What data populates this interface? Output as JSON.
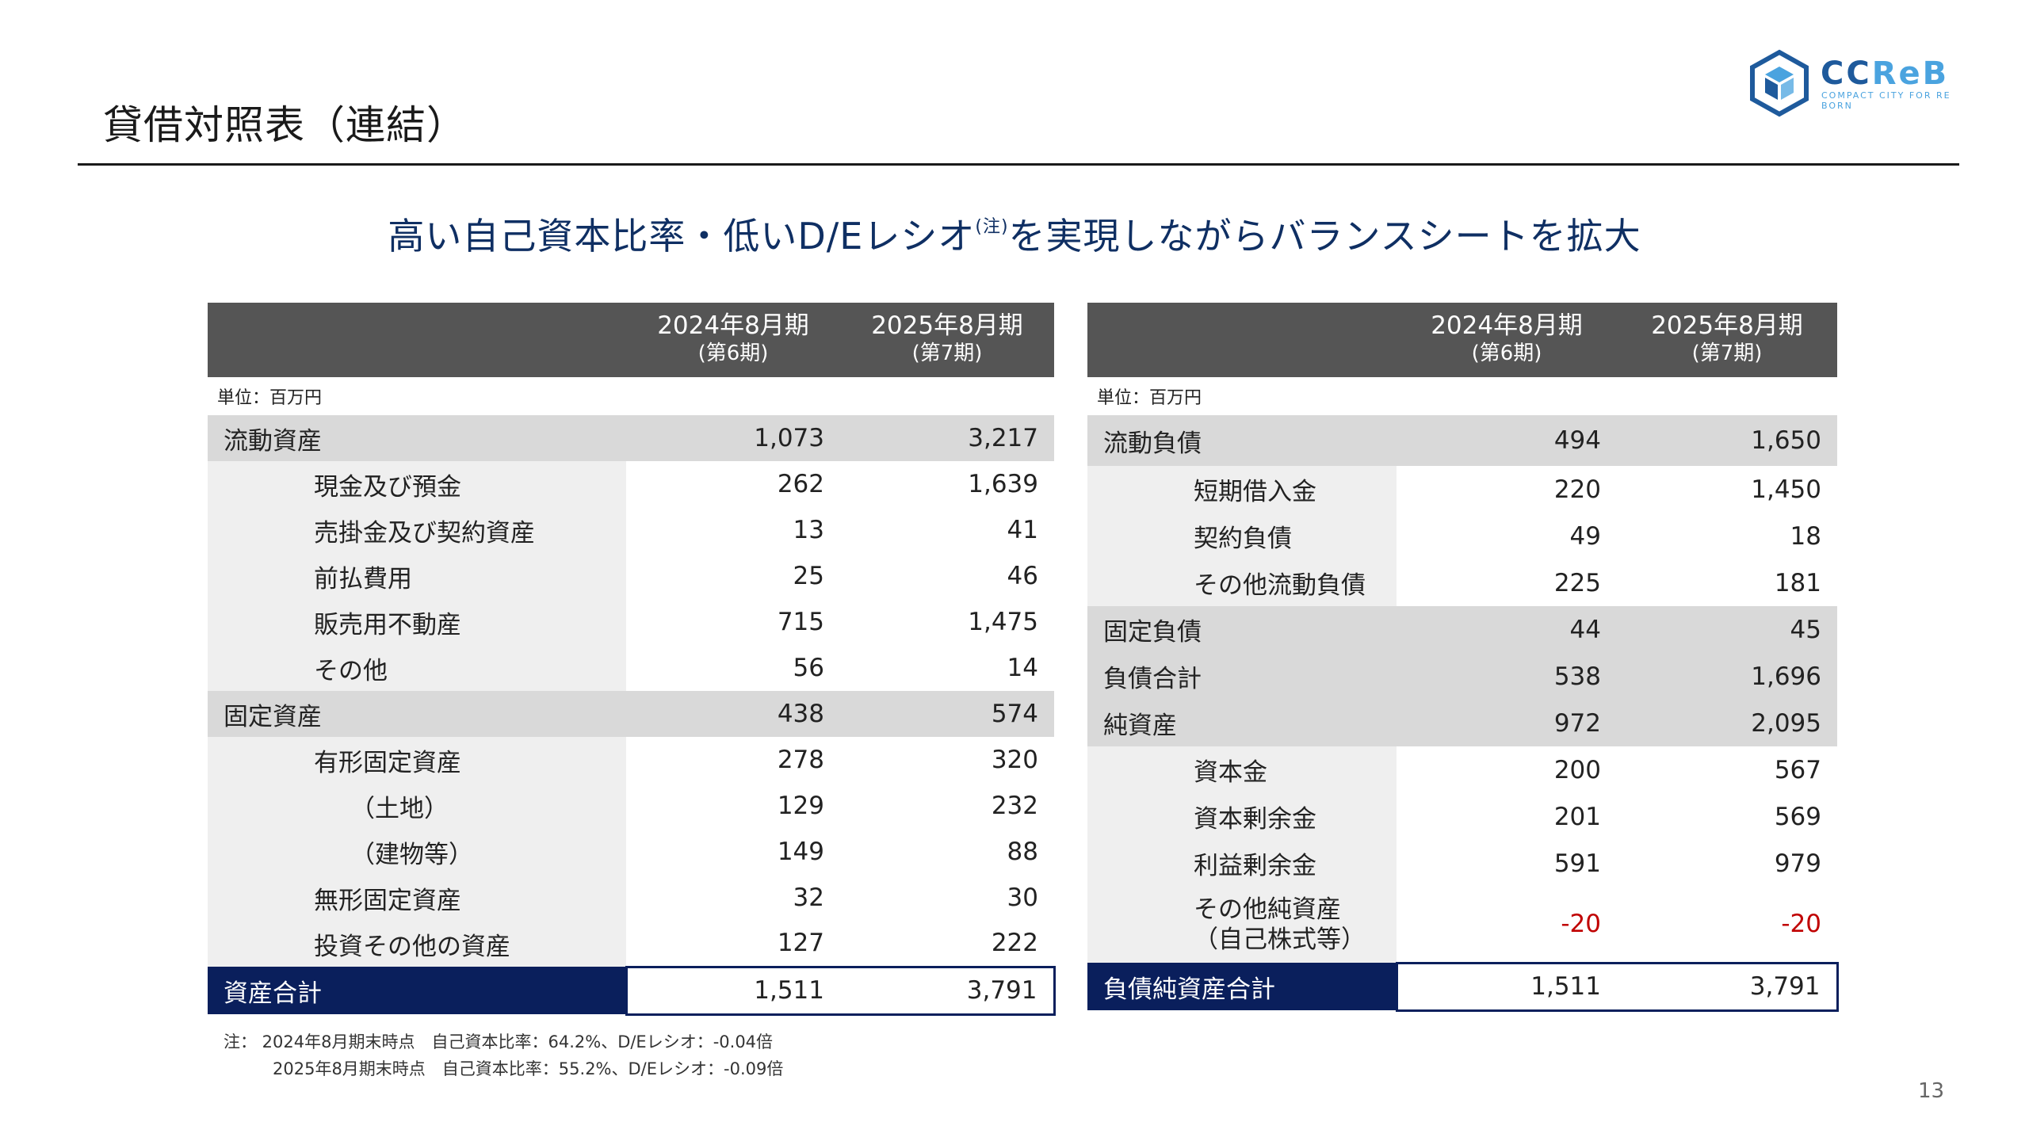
{
  "page": {
    "title": "貸借対照表（連結）",
    "headline_main": "高い自己資本比率・低いD/Eレシオ",
    "headline_note": "(注)",
    "headline_rest": "を実現しながらバランスシートを拡大",
    "page_number": "13"
  },
  "logo": {
    "brand_bold": "CC",
    "brand_thin": "ReB",
    "tagline": "COMPACT CITY FOR RE BORN"
  },
  "columns": {
    "fy2024": "2024年8月期",
    "fy2024_sub": "(第6期)",
    "fy2025": "2025年8月期",
    "fy2025_sub": "(第7期)"
  },
  "unit_label": "単位：百万円",
  "assets": {
    "rows": [
      {
        "label": "流動資産",
        "v2024": "1,073",
        "v2025": "3,217"
      },
      {
        "label": "現金及び預金",
        "v2024": "262",
        "v2025": "1,639"
      },
      {
        "label": "売掛金及び契約資産",
        "v2024": "13",
        "v2025": "41"
      },
      {
        "label": "前払費用",
        "v2024": "25",
        "v2025": "46"
      },
      {
        "label": "販売用不動産",
        "v2024": "715",
        "v2025": "1,475"
      },
      {
        "label": "その他",
        "v2024": "56",
        "v2025": "14"
      },
      {
        "label": "固定資産",
        "v2024": "438",
        "v2025": "574"
      },
      {
        "label": "有形固定資産",
        "v2024": "278",
        "v2025": "320"
      },
      {
        "label": "（土地）",
        "v2024": "129",
        "v2025": "232"
      },
      {
        "label": "（建物等）",
        "v2024": "149",
        "v2025": "88"
      },
      {
        "label": "無形固定資産",
        "v2024": "32",
        "v2025": "30"
      },
      {
        "label": "投資その他の資産",
        "v2024": "127",
        "v2025": "222"
      },
      {
        "label": "資産合計",
        "v2024": "1,511",
        "v2025": "3,791"
      }
    ]
  },
  "liabilities": {
    "rows": [
      {
        "label": "流動負債",
        "v2024": "494",
        "v2025": "1,650"
      },
      {
        "label": "短期借入金",
        "v2024": "220",
        "v2025": "1,450"
      },
      {
        "label": "契約負債",
        "v2024": "49",
        "v2025": "18"
      },
      {
        "label": "その他流動負債",
        "v2024": "225",
        "v2025": "181"
      },
      {
        "label": "固定負債",
        "v2024": "44",
        "v2025": "45"
      },
      {
        "label": "負債合計",
        "v2024": "538",
        "v2025": "1,696"
      },
      {
        "label": "純資産",
        "v2024": "972",
        "v2025": "2,095"
      },
      {
        "label": "資本金",
        "v2024": "200",
        "v2025": "567"
      },
      {
        "label": "資本剰余金",
        "v2024": "201",
        "v2025": "569"
      },
      {
        "label": "利益剰余金",
        "v2024": "591",
        "v2025": "979"
      },
      {
        "label": "その他純資産",
        "label_line2": "（自己株式等）",
        "v2024": "-20",
        "v2025": "-20"
      },
      {
        "label": "負債純資産合計",
        "v2024": "1,511",
        "v2025": "3,791"
      }
    ]
  },
  "notes": {
    "line1": "注： 2024年8月期末時点　自己資本比率：64.2%、D/Eレシオ：-0.04倍",
    "line2": "2025年8月期末時点　自己資本比率：55.2%、D/Eレシオ：-0.09倍"
  },
  "colors": {
    "header_bg": "#555555",
    "major_row_bg": "#d9d9d9",
    "minor_label_bg": "#efefef",
    "total_bg": "#0a1f5c",
    "headline": "#0f2f63",
    "negative": "#c00000",
    "logo_dark": "#1e5a9c",
    "logo_light": "#4aa3df"
  }
}
